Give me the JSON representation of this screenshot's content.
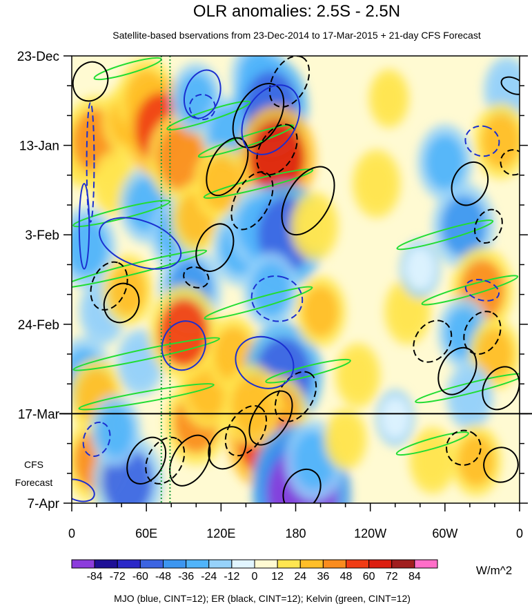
{
  "chart_data": {
    "type": "heatmap",
    "title": "OLR anomalies: 2.5S - 2.5N",
    "subtitle": "Satellite-based bservations from 23-Dec-2014 to 17-Mar-2015 + 21-day CFS Forecast",
    "x_ticks": [
      {
        "lon": 0,
        "label": "0"
      },
      {
        "lon": 60,
        "label": "60E"
      },
      {
        "lon": 120,
        "label": "120E"
      },
      {
        "lon": 180,
        "label": "180"
      },
      {
        "lon": 240,
        "label": "120W"
      },
      {
        "lon": 300,
        "label": "60W"
      },
      {
        "lon": 360,
        "label": "0"
      }
    ],
    "xlim": [
      0,
      360
    ],
    "y_ticks": [
      {
        "day": 0,
        "label": "23-Dec"
      },
      {
        "day": 21,
        "label": "13-Jan"
      },
      {
        "day": 42,
        "label": "3-Feb"
      },
      {
        "day": 63,
        "label": "24-Feb"
      },
      {
        "day": 84,
        "label": "17-Mar"
      },
      {
        "day": 105,
        "label": "7-Apr"
      }
    ],
    "ylim": [
      0,
      105
    ],
    "forecast_start_day": 84,
    "forecast_label": [
      "CFS",
      "Forecast"
    ],
    "colorbar": {
      "levels": [
        "-84",
        "-72",
        "-60",
        "-48",
        "-36",
        "-24",
        "-12",
        "0",
        "12",
        "24",
        "36",
        "48",
        "60",
        "72",
        "84"
      ],
      "colors": [
        "#8c3cdc",
        "#1e0f96",
        "#2b28c8",
        "#3c64e1",
        "#3c96f0",
        "#50b4fa",
        "#96d2fa",
        "#e1f5ff",
        "#fffad2",
        "#ffe650",
        "#ffbe28",
        "#fa8c1e",
        "#f03c14",
        "#dc1e0f",
        "#a01e1e",
        "#ff6ec8"
      ],
      "units": "W/m^2"
    },
    "footer": "MJO (blue, CINT=12); ER (black, CINT=12); Kelvin (green, CINT=12)",
    "reference_lines_lon": [
      72,
      79
    ],
    "anomaly_blobs": [
      {
        "lon": 10,
        "day": 22,
        "value": 30
      },
      {
        "lon": 20,
        "day": 20,
        "value": 45
      },
      {
        "lon": 35,
        "day": 30,
        "value": 20
      },
      {
        "lon": 12,
        "day": 45,
        "value": -35
      },
      {
        "lon": 25,
        "day": 60,
        "value": -20
      },
      {
        "lon": 10,
        "day": 75,
        "value": -30
      },
      {
        "lon": 20,
        "day": 80,
        "value": 30
      },
      {
        "lon": 45,
        "day": 15,
        "value": 25
      },
      {
        "lon": 60,
        "day": 10,
        "value": 35
      },
      {
        "lon": 60,
        "day": 35,
        "value": -30
      },
      {
        "lon": 45,
        "day": 55,
        "value": 25
      },
      {
        "lon": 55,
        "day": 72,
        "value": -20
      },
      {
        "lon": 20,
        "day": 95,
        "value": 40
      },
      {
        "lon": 45,
        "day": 100,
        "value": -50
      },
      {
        "lon": 35,
        "day": 88,
        "value": -25
      },
      {
        "lon": 72,
        "day": 17,
        "value": 55
      },
      {
        "lon": 88,
        "day": 24,
        "value": 45
      },
      {
        "lon": 100,
        "day": 10,
        "value": -25
      },
      {
        "lon": 85,
        "day": 42,
        "value": -30
      },
      {
        "lon": 95,
        "day": 55,
        "value": -40
      },
      {
        "lon": 100,
        "day": 38,
        "value": 25
      },
      {
        "lon": 100,
        "day": 86,
        "value": 40
      },
      {
        "lon": 110,
        "day": 78,
        "value": 35
      },
      {
        "lon": 90,
        "day": 65,
        "value": 50
      },
      {
        "lon": 125,
        "day": 18,
        "value": -25
      },
      {
        "lon": 120,
        "day": 30,
        "value": 30
      },
      {
        "lon": 135,
        "day": 45,
        "value": -30
      },
      {
        "lon": 130,
        "day": 70,
        "value": 30
      },
      {
        "lon": 150,
        "day": 5,
        "value": -30
      },
      {
        "lon": 160,
        "day": 12,
        "value": -55
      },
      {
        "lon": 165,
        "day": 24,
        "value": 60
      },
      {
        "lon": 150,
        "day": 40,
        "value": -35
      },
      {
        "lon": 172,
        "day": 42,
        "value": -60
      },
      {
        "lon": 160,
        "day": 55,
        "value": -30
      },
      {
        "lon": 170,
        "day": 75,
        "value": -60
      },
      {
        "lon": 165,
        "day": 85,
        "value": 40
      },
      {
        "lon": 155,
        "day": 90,
        "value": 55
      },
      {
        "lon": 145,
        "day": 82,
        "value": 35
      },
      {
        "lon": 180,
        "day": 100,
        "value": -70
      },
      {
        "lon": 185,
        "day": 103,
        "value": -85
      },
      {
        "lon": 195,
        "day": 95,
        "value": -35
      },
      {
        "lon": 200,
        "day": 60,
        "value": 25
      },
      {
        "lon": 195,
        "day": 40,
        "value": 22
      },
      {
        "lon": 245,
        "day": 30,
        "value": 22
      },
      {
        "lon": 230,
        "day": 75,
        "value": 18
      },
      {
        "lon": 270,
        "day": 60,
        "value": 20
      },
      {
        "lon": 300,
        "day": 25,
        "value": -30
      },
      {
        "lon": 315,
        "day": 40,
        "value": -40
      },
      {
        "lon": 330,
        "day": 55,
        "value": 40
      },
      {
        "lon": 315,
        "day": 65,
        "value": -25
      },
      {
        "lon": 340,
        "day": 70,
        "value": 25
      },
      {
        "lon": 320,
        "day": 80,
        "value": -20
      },
      {
        "lon": 325,
        "day": 95,
        "value": 25
      },
      {
        "lon": 350,
        "day": 8,
        "value": -20
      },
      {
        "lon": 345,
        "day": 20,
        "value": 30
      },
      {
        "lon": 290,
        "day": 95,
        "value": 20
      },
      {
        "lon": 220,
        "day": 90,
        "value": 15
      },
      {
        "lon": 260,
        "day": 85,
        "value": -10
      },
      {
        "lon": 280,
        "day": 50,
        "value": -12
      },
      {
        "lon": 255,
        "day": 10,
        "value": 12
      }
    ],
    "mjo_contours": [
      {
        "lon": 15,
        "day": 25,
        "rx": 3,
        "ry": 14,
        "angle": 0,
        "sign": -1
      },
      {
        "lon": 10,
        "day": 40,
        "rx": 4,
        "ry": 10,
        "angle": 0,
        "sign": 1
      },
      {
        "lon": 55,
        "day": 44,
        "rx": 18,
        "ry": 10,
        "angle": 70,
        "sign": 1
      },
      {
        "lon": 90,
        "day": 68,
        "rx": 20,
        "ry": 5,
        "angle": 70,
        "sign": 1
      },
      {
        "lon": 155,
        "day": 72,
        "rx": 20,
        "ry": 7,
        "angle": 65,
        "sign": 1
      },
      {
        "lon": 165,
        "day": 57,
        "rx": 18,
        "ry": 6,
        "angle": 75,
        "sign": -1
      },
      {
        "lon": 160,
        "day": 15,
        "rx": 30,
        "ry": 6,
        "angle": 60,
        "sign": 1
      },
      {
        "lon": 105,
        "day": 9,
        "rx": 20,
        "ry": 4,
        "angle": 70,
        "sign": 1
      },
      {
        "lon": 105,
        "day": 12,
        "rx": 10,
        "ry": 3,
        "angle": 70,
        "sign": -1
      },
      {
        "lon": 330,
        "day": 20,
        "rx": 12,
        "ry": 4,
        "angle": 75,
        "sign": -1
      },
      {
        "lon": 330,
        "day": 55,
        "rx": 8,
        "ry": 4,
        "angle": 75,
        "sign": -1
      },
      {
        "lon": 5,
        "day": 102,
        "rx": 8,
        "ry": 4,
        "angle": 70,
        "sign": 1
      },
      {
        "lon": 20,
        "day": 90,
        "rx": 14,
        "ry": 3,
        "angle": 70,
        "sign": -1
      }
    ],
    "er_contours": [
      {
        "lon": 15,
        "day": 6,
        "rx": 16,
        "ry": 4,
        "angle": 68,
        "sign": 1
      },
      {
        "lon": 40,
        "day": 58,
        "rx": 16,
        "ry": 4,
        "angle": 68,
        "sign": 1
      },
      {
        "lon": 30,
        "day": 54,
        "rx": 20,
        "ry": 4,
        "angle": 68,
        "sign": -1
      },
      {
        "lon": 60,
        "day": 95,
        "rx": 20,
        "ry": 4,
        "angle": 60,
        "sign": 1
      },
      {
        "lon": 75,
        "day": 95,
        "rx": 20,
        "ry": 4,
        "angle": 60,
        "sign": -1
      },
      {
        "lon": 95,
        "day": 95,
        "rx": 22,
        "ry": 4,
        "angle": 60,
        "sign": 1
      },
      {
        "lon": 115,
        "day": 45,
        "rx": 20,
        "ry": 4,
        "angle": 65,
        "sign": 1
      },
      {
        "lon": 100,
        "day": 52,
        "rx": 8,
        "ry": 3,
        "angle": 70,
        "sign": -1
      },
      {
        "lon": 125,
        "day": 26,
        "rx": 25,
        "ry": 4,
        "angle": 63,
        "sign": 1
      },
      {
        "lon": 145,
        "day": 34,
        "rx": 25,
        "ry": 4,
        "angle": 63,
        "sign": -1
      },
      {
        "lon": 165,
        "day": 22,
        "rx": 22,
        "ry": 4,
        "angle": 60,
        "sign": -1
      },
      {
        "lon": 190,
        "day": 34,
        "rx": 30,
        "ry": 5,
        "angle": 60,
        "sign": 1
      },
      {
        "lon": 150,
        "day": 14,
        "rx": 28,
        "ry": 5,
        "angle": 60,
        "sign": 1
      },
      {
        "lon": 175,
        "day": 6,
        "rx": 22,
        "ry": 4,
        "angle": 62,
        "sign": -1
      },
      {
        "lon": 125,
        "day": 92,
        "rx": 18,
        "ry": 4,
        "angle": 58,
        "sign": 1
      },
      {
        "lon": 140,
        "day": 88,
        "rx": 22,
        "ry": 4,
        "angle": 58,
        "sign": -1
      },
      {
        "lon": 160,
        "day": 85,
        "rx": 24,
        "ry": 4,
        "angle": 58,
        "sign": 1
      },
      {
        "lon": 180,
        "day": 80,
        "rx": 22,
        "ry": 4,
        "angle": 58,
        "sign": -1
      },
      {
        "lon": 185,
        "day": 102,
        "rx": 18,
        "ry": 4,
        "angle": 58,
        "sign": 1
      },
      {
        "lon": 290,
        "day": 67,
        "rx": 18,
        "ry": 4,
        "angle": 55,
        "sign": -1
      },
      {
        "lon": 310,
        "day": 74,
        "rx": 20,
        "ry": 4,
        "angle": 62,
        "sign": 1
      },
      {
        "lon": 330,
        "day": 65,
        "rx": 18,
        "ry": 4,
        "angle": 62,
        "sign": -1
      },
      {
        "lon": 345,
        "day": 78,
        "rx": 18,
        "ry": 4,
        "angle": 62,
        "sign": 1
      },
      {
        "lon": 315,
        "day": 92,
        "rx": 14,
        "ry": 4,
        "angle": 62,
        "sign": -1
      },
      {
        "lon": 345,
        "day": 96,
        "rx": 14,
        "ry": 4,
        "angle": 62,
        "sign": 1
      },
      {
        "lon": 320,
        "day": 30,
        "rx": 18,
        "ry": 4,
        "angle": 65,
        "sign": 1
      },
      {
        "lon": 335,
        "day": 40,
        "rx": 14,
        "ry": 3,
        "angle": 65,
        "sign": -1
      },
      {
        "lon": 355,
        "day": 25,
        "rx": 10,
        "ry": 3,
        "angle": 65,
        "sign": -1
      },
      {
        "lon": 355,
        "day": 7,
        "rx": 6,
        "ry": 3,
        "angle": 65,
        "sign": 1
      }
    ],
    "kelvin_contours": [
      {
        "lon": 45,
        "day": 3,
        "rx": 28,
        "ry": 1.2,
        "angle": 16,
        "sign": 1
      },
      {
        "lon": 110,
        "day": 14,
        "rx": 35,
        "ry": 1.2,
        "angle": 18,
        "sign": 1
      },
      {
        "lon": 140,
        "day": 20,
        "rx": 40,
        "ry": 1.2,
        "angle": 18,
        "sign": 1
      },
      {
        "lon": 40,
        "day": 37,
        "rx": 40,
        "ry": 1.2,
        "angle": 14,
        "sign": 1
      },
      {
        "lon": 150,
        "day": 30,
        "rx": 45,
        "ry": 1.2,
        "angle": 14,
        "sign": 1
      },
      {
        "lon": 300,
        "day": 42,
        "rx": 40,
        "ry": 1.2,
        "angle": 16,
        "sign": 1
      },
      {
        "lon": 50,
        "day": 50,
        "rx": 60,
        "ry": 1.2,
        "angle": 14,
        "sign": 1
      },
      {
        "lon": 150,
        "day": 58,
        "rx": 45,
        "ry": 1.2,
        "angle": 16,
        "sign": 1
      },
      {
        "lon": 320,
        "day": 55,
        "rx": 40,
        "ry": 1.2,
        "angle": 16,
        "sign": 1
      },
      {
        "lon": 60,
        "day": 70,
        "rx": 60,
        "ry": 1.2,
        "angle": 12,
        "sign": 1
      },
      {
        "lon": 190,
        "day": 74,
        "rx": 35,
        "ry": 1.2,
        "angle": 14,
        "sign": 1
      },
      {
        "lon": 320,
        "day": 78,
        "rx": 45,
        "ry": 1.2,
        "angle": 14,
        "sign": 1
      },
      {
        "lon": 60,
        "day": 80,
        "rx": 55,
        "ry": 1.2,
        "angle": 10,
        "sign": 1
      },
      {
        "lon": 290,
        "day": 91,
        "rx": 30,
        "ry": 1.2,
        "angle": 16,
        "sign": 1
      }
    ]
  }
}
